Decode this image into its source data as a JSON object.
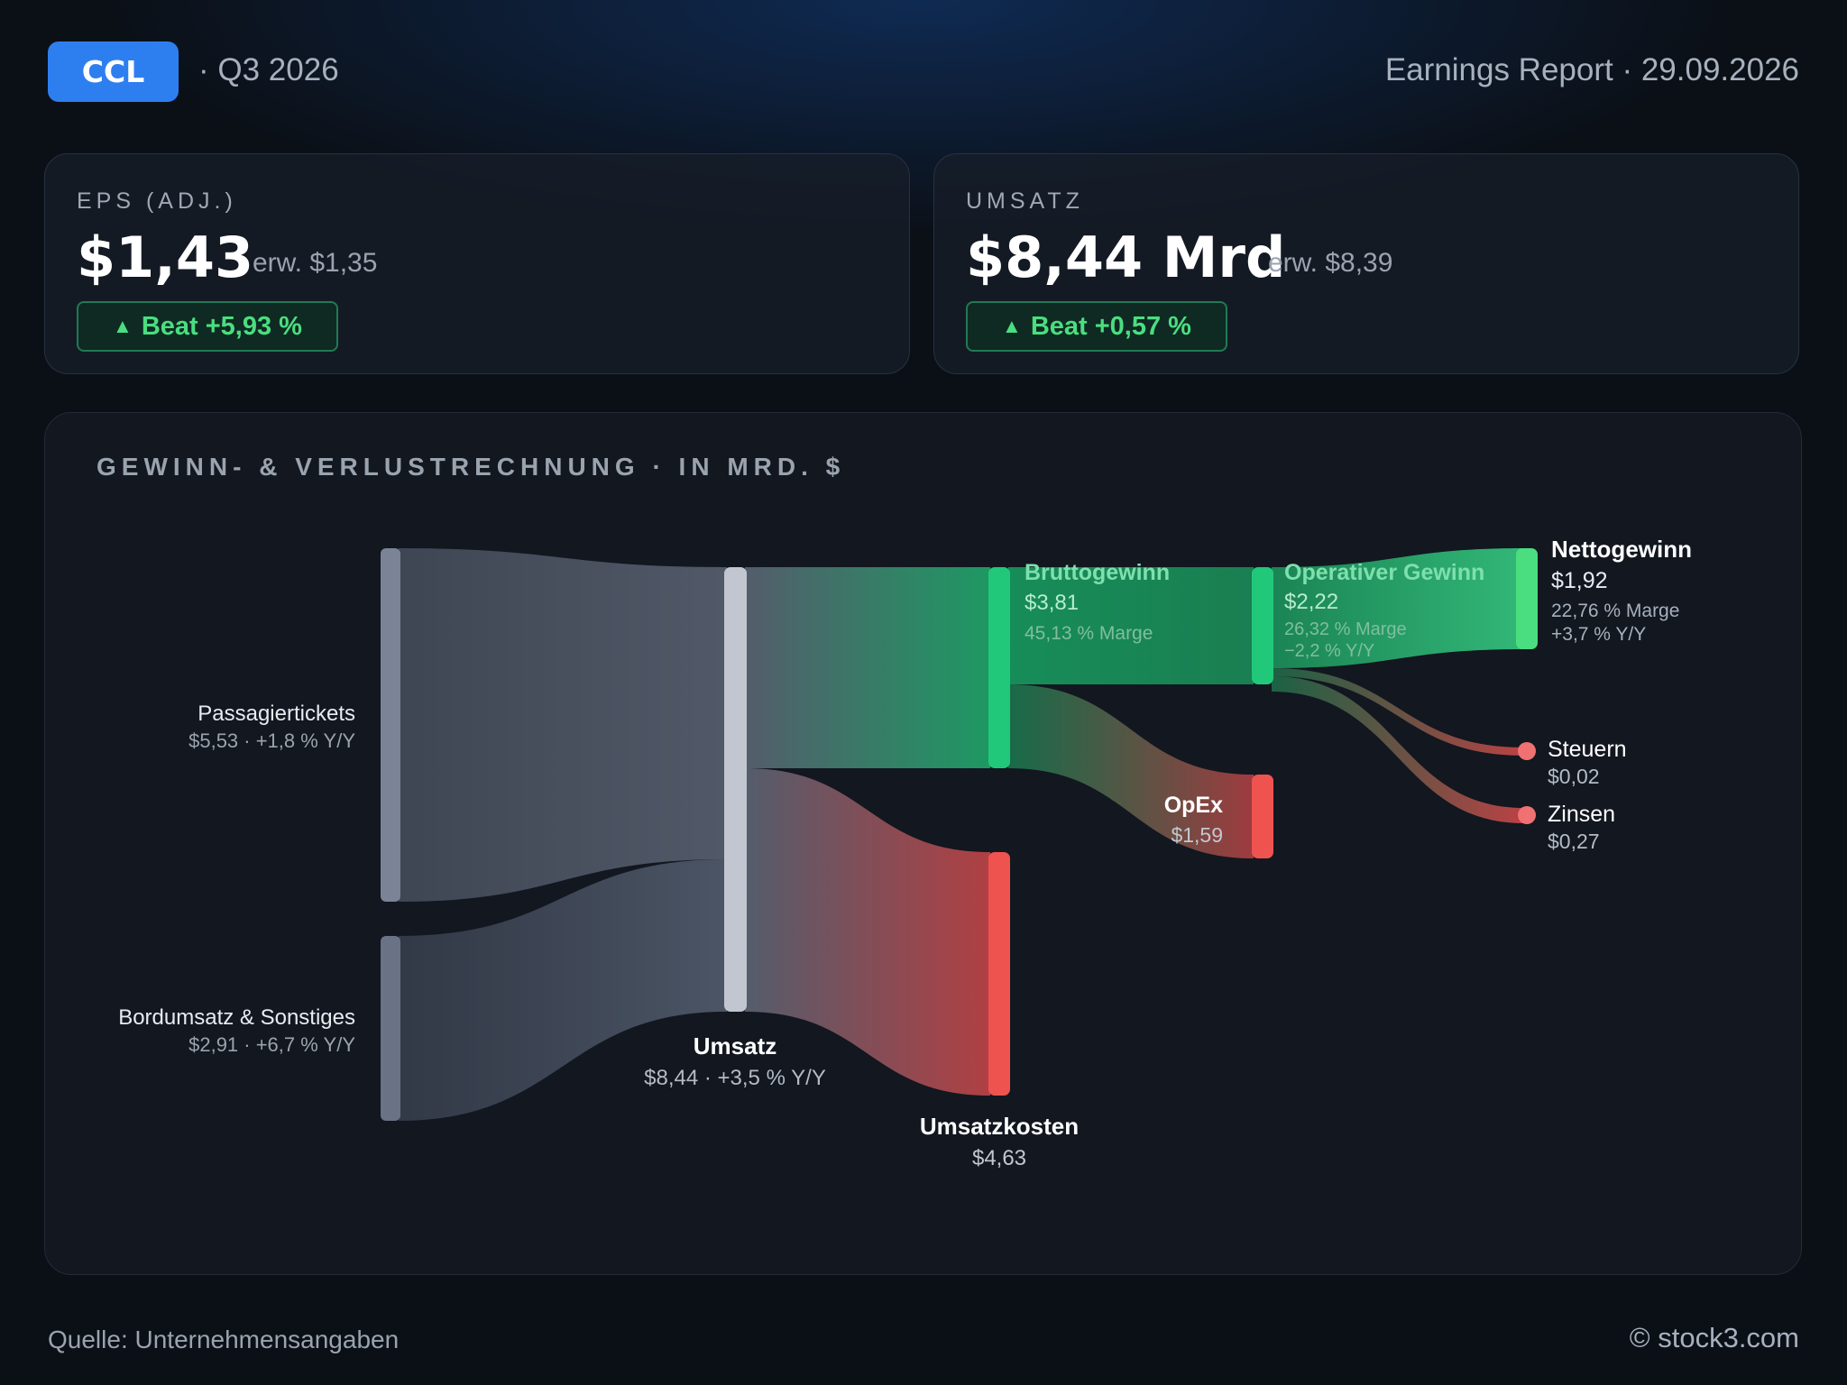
{
  "header": {
    "ticker": "CCL",
    "quarter": "· Q3 2026",
    "report": "Earnings Report · 29.09.2026"
  },
  "cards": {
    "eps": {
      "label": "EPS (ADJ.)",
      "value": "$1,43",
      "expected": "erw. $1,35",
      "beat": "Beat +5,93 %"
    },
    "revenue": {
      "label": "UMSATZ",
      "value": "$8,44 Mrd",
      "expected": "erw. $8,39",
      "beat": "Beat +0,57 %"
    }
  },
  "panel": {
    "title": "GEWINN- & VERLUSTRECHNUNG · IN MRD. $"
  },
  "nodes": {
    "passagiertickets": {
      "name": "Passagiertickets",
      "detail": "$5,53 · +1,8 % Y/Y"
    },
    "bordumsatz": {
      "name": "Bordumsatz & Sonstiges",
      "detail": "$2,91 · +6,7 % Y/Y"
    },
    "umsatz": {
      "name": "Umsatz",
      "detail": "$8,44 · +3,5 % Y/Y"
    },
    "umsatzkosten": {
      "name": "Umsatzkosten",
      "value": "$4,63"
    },
    "bruttogewinn": {
      "name": "Bruttogewinn",
      "value": "$3,81",
      "margin": "45,13 % Marge"
    },
    "opex": {
      "name": "OpEx",
      "value": "$1,59"
    },
    "operativer": {
      "name": "Operativer Gewinn",
      "value": "$2,22",
      "margin": "26,32 % Marge",
      "yoy": "−2,2 % Y/Y"
    },
    "netto": {
      "name": "Nettogewinn",
      "value": "$1,92",
      "margin": "22,76 % Marge",
      "yoy": "+3,7 % Y/Y"
    },
    "steuern": {
      "name": "Steuern",
      "value": "$0,02"
    },
    "zinsen": {
      "name": "Zinsen",
      "value": "$0,27"
    }
  },
  "colors": {
    "accent": "#2d7ff0",
    "profit": "#22c87a",
    "cost": "#ef5350",
    "neutral": "#5b6474"
  },
  "footer": {
    "source": "Quelle: Unternehmensangaben",
    "copyright": "© stock3.com"
  }
}
